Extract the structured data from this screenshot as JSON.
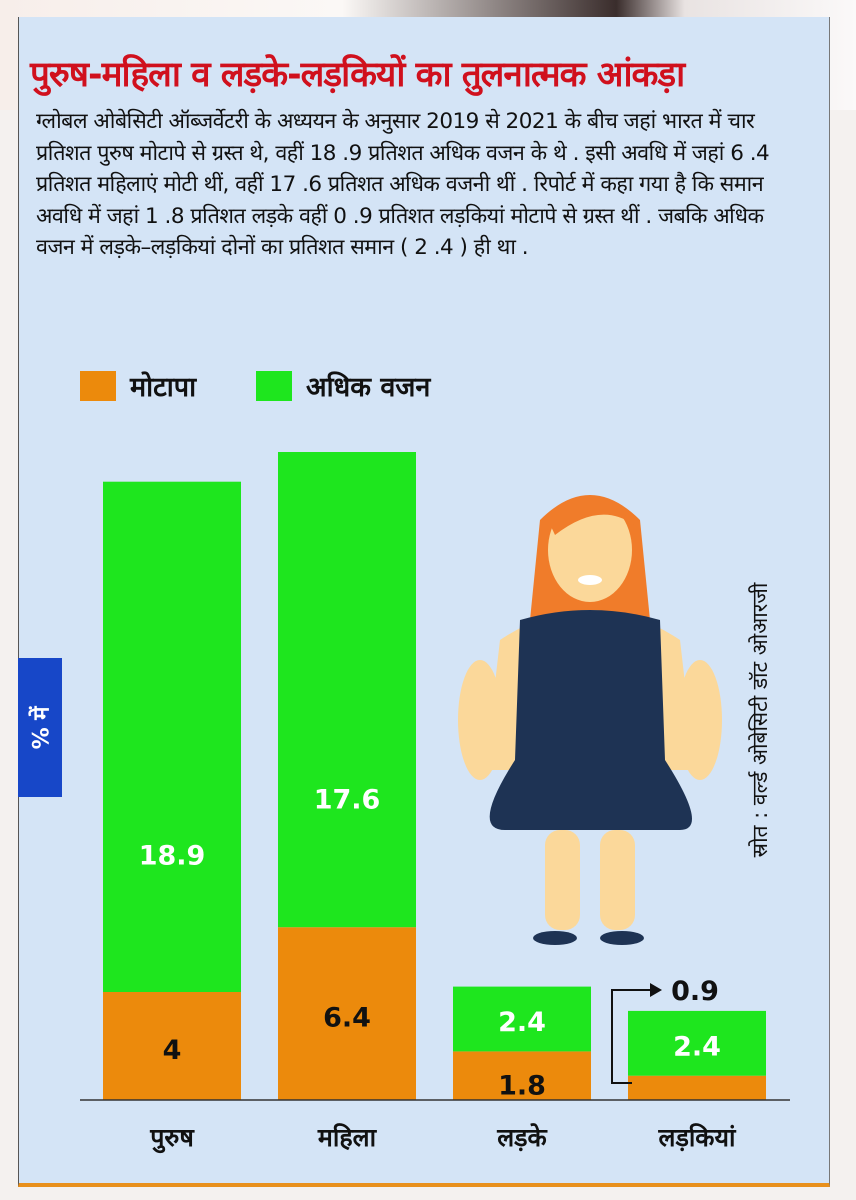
{
  "title": "पुरुष-महिला व लड़के-लड़कियों का तुलनात्मक आंकड़ा",
  "paragraph": "ग्लोबल ओबेसिटी ऑब्जर्वेटरी के अध्ययन के अनुसार 2019 से 2021 के बीच जहां भारत में चार प्रतिशत पुरुष मोटापे से ग्रस्त थे, वहीं 18 .9 प्रतिशत अधिक वजन के थे . इसी अवधि में जहां 6 .4 प्रतिशत महिलाएं मोटी थीं, वहीं 17 .6 प्रतिशत अधिक वजनी थीं . रिपोर्ट में कहा गया है कि समान अवधि में जहां 1 .8 प्रतिशत लड़के वहीं 0 .9 प्रतिशत लड़कियां मोटापे से ग्रस्त थीं . जबकि अधिक वजन में लड़के–लड़कियां दोनों का प्रतिशत समान ( 2 .4 ) ही था .",
  "source": "स्रोत : वर्ल्ड ओबेसिटी डॉट ओआरजी",
  "colors": {
    "obesity": "#ec8a0c",
    "overweight": "#1ee61e",
    "title": "#d0101d",
    "ylabel_bg": "#1747c8",
    "panel": "#d4e4f6"
  },
  "chart_data": {
    "type": "bar",
    "stacked": true,
    "ylabel": "% में",
    "categories": [
      "पुरुष",
      "महिला",
      "लड़के",
      "लड़कियां"
    ],
    "series": [
      {
        "name": "मोटापा",
        "values": [
          4,
          6.4,
          1.8,
          0.9
        ],
        "labels": [
          "4",
          "6.4",
          "1.8",
          "0.9"
        ]
      },
      {
        "name": "अधिक वजन",
        "values": [
          18.9,
          17.6,
          2.4,
          2.4
        ],
        "labels": [
          "18.9",
          "17.6",
          "2.4",
          "2.4"
        ]
      }
    ],
    "legend": "top-left",
    "grid": false
  }
}
